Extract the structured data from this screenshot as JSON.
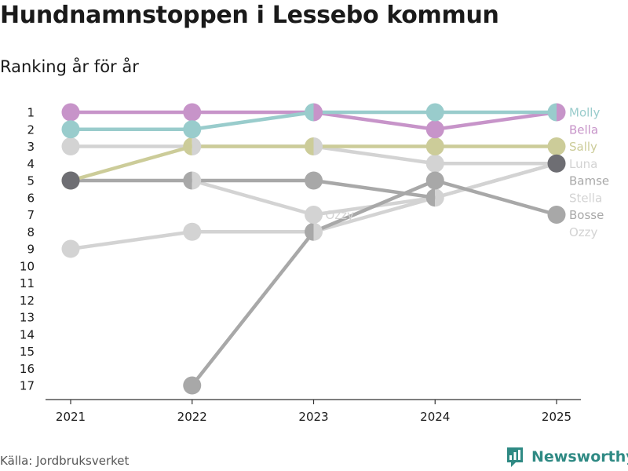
{
  "title": "Hundnamnstoppen i Lessebo kommun",
  "subtitle": "Ranking år för år",
  "source": "Källa: Jordbruksverket",
  "brand": "Newsworthy",
  "colors": {
    "brand": "#2f8a84"
  },
  "chart_data": {
    "type": "line",
    "title": "Hundnamnstoppen i Lessebo kommun",
    "subtitle": "Ranking år för år",
    "xlabel": "",
    "ylabel": "",
    "x": [
      "2021",
      "2022",
      "2023",
      "2024",
      "2025"
    ],
    "y_ticks": [
      "1",
      "2",
      "3",
      "4",
      "5",
      "6",
      "7",
      "8",
      "9",
      "10",
      "11",
      "12",
      "13",
      "14",
      "15",
      "16",
      "17"
    ],
    "ylim": [
      1,
      17
    ],
    "y_reversed": true,
    "series": [
      {
        "name": "Ozzy",
        "color": "#d3d3d3",
        "label_rank": 8,
        "values": [
          9,
          8,
          8,
          6,
          4
        ]
      },
      {
        "name": "Stella",
        "color": "#d3d3d3",
        "label_rank": 6,
        "values": [
          null,
          5,
          7,
          6,
          4
        ]
      },
      {
        "name": "Luna",
        "color": "#d3d3d3",
        "label_rank": 4,
        "values": [
          3,
          3,
          3,
          4,
          4
        ]
      },
      {
        "name": "Bosse",
        "color": "#a8a8a8",
        "label_rank": 7,
        "values": [
          null,
          17,
          8,
          5,
          7
        ]
      },
      {
        "name": "Bamse",
        "color": "#a8a8a8",
        "label_rank": 5,
        "values": [
          5,
          5,
          5,
          6,
          null
        ]
      },
      {
        "name": "Sally",
        "color": "#cccc99",
        "label_rank": 3,
        "values": [
          5,
          3,
          3,
          3,
          3
        ]
      },
      {
        "name": "Bella",
        "color": "#c794c9",
        "label_rank": 2,
        "values": [
          1,
          1,
          1,
          2,
          1
        ]
      },
      {
        "name": "Molly",
        "color": "#99cccc",
        "label_rank": 1,
        "values": [
          2,
          2,
          1,
          1,
          1
        ]
      }
    ],
    "extra_markers": [
      {
        "x": "2021",
        "rank": 5,
        "color": "#6e6e73"
      },
      {
        "x": "2025",
        "rank": 4,
        "color": "#6e6e73"
      }
    ],
    "annotations": [
      {
        "text": "Ozzy",
        "x": "2023",
        "rank": 7,
        "color": "#d3d3d3"
      }
    ]
  }
}
